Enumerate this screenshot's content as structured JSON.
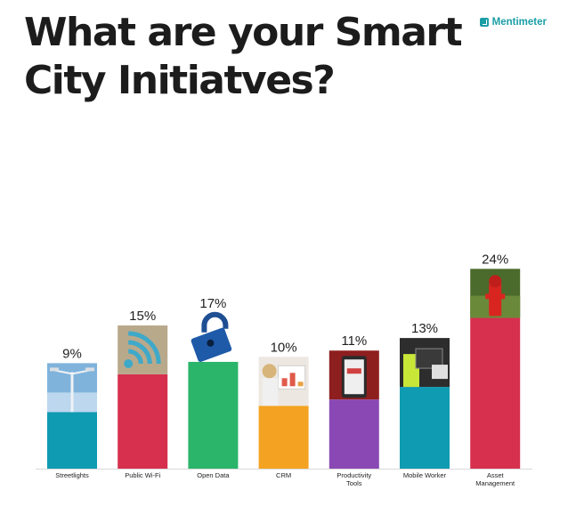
{
  "header": {
    "title": "What are your Smart City Initiatves?",
    "brand": "Mentimeter"
  },
  "colors": {
    "Streetlights": "#0f9bb2",
    "Public Wi-Fi": "#d6304e",
    "Open Data": "#2ab56a",
    "CRM": "#f4a221",
    "Productivity Tools": "#8a48b5",
    "Mobile Worker": "#0f9bb2",
    "Asset Management": "#d6304e"
  },
  "icons": [
    "streetlight-photo",
    "wifi-photo",
    "padlock-photo",
    "crm-photo",
    "tablet-photo",
    "worker-photo",
    "hydrant-photo"
  ],
  "chart_data": {
    "type": "bar",
    "title": "What are your Smart City Initiatves?",
    "categories": [
      "Streetlights",
      "Public Wi-Fi",
      "Open Data",
      "CRM",
      "Productivity Tools",
      "Mobile Worker",
      "Asset Management"
    ],
    "category_lines": [
      [
        "Streetlights"
      ],
      [
        "Public Wi-Fi"
      ],
      [
        "Open Data"
      ],
      [
        "CRM"
      ],
      [
        "Productivity",
        "Tools"
      ],
      [
        "Mobile Worker"
      ],
      [
        "Asset",
        "Management"
      ]
    ],
    "values": [
      9,
      15,
      17,
      10,
      11,
      13,
      24
    ],
    "labels": [
      "9%",
      "15%",
      "17%",
      "10%",
      "11%",
      "13%",
      "24%"
    ],
    "unit": "%"
  }
}
